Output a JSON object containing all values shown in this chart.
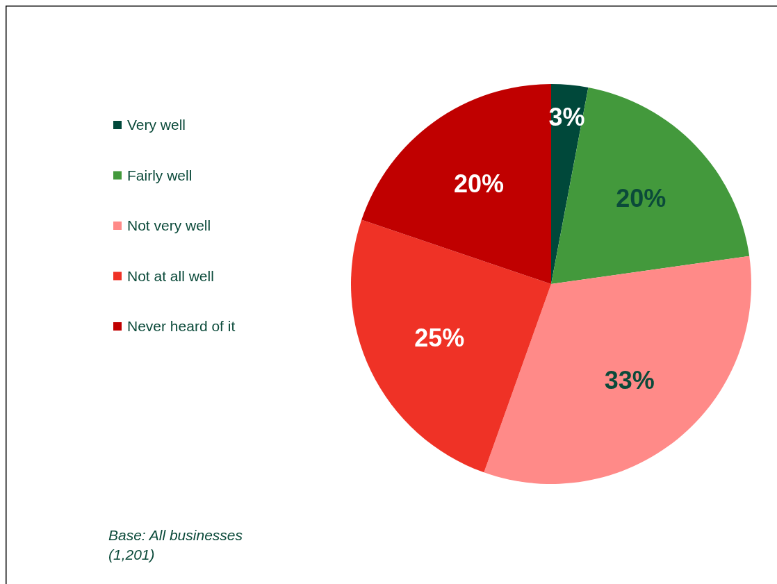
{
  "chart_data": {
    "type": "pie",
    "categories": [
      "Very well",
      "Fairly well",
      "Not very well",
      "Not at all well",
      "Never heard of it"
    ],
    "values": [
      3,
      20,
      33,
      25,
      20
    ],
    "colors": [
      "#00483a",
      "#43993c",
      "#ff8a88",
      "#ef3226",
      "#c00000"
    ],
    "value_labels": [
      "3%",
      "20%",
      "33%",
      "25%",
      "20%"
    ],
    "legend": "left",
    "annotations": [
      "Base: All businesses\n(1,201)"
    ]
  }
}
